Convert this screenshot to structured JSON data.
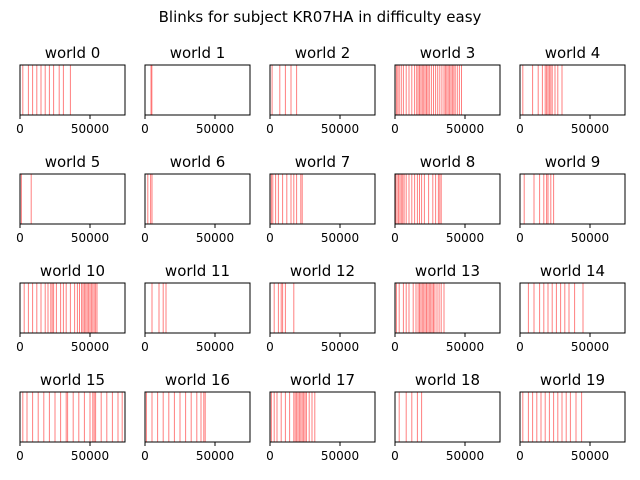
{
  "suptitle": "Blinks for subject KR07HA in difficulty easy",
  "chart_data": {
    "type": "event-lines",
    "title": "Blinks for subject KR07HA in difficulty easy",
    "grid": false,
    "xlim": [
      0,
      75000
    ],
    "xticks": [
      0,
      50000
    ],
    "xtick_labels": [
      "0",
      "50000"
    ],
    "yticks": [],
    "color": "#ff0000",
    "panels": [
      {
        "title": "world 0",
        "events": [
          2000,
          6000,
          9000,
          12000,
          15000,
          18000,
          21000,
          24000,
          28000,
          31000,
          36000
        ]
      },
      {
        "title": "world 1",
        "events": [
          4300,
          4900
        ]
      },
      {
        "title": "world 2",
        "events": [
          1500,
          7000,
          11000,
          15000,
          19000
        ]
      },
      {
        "title": "world 3",
        "events": [
          1000,
          2000,
          3000,
          4500,
          6000,
          8000,
          10000,
          12000,
          14000,
          15500,
          16500,
          17500,
          18500,
          19500,
          20500,
          21500,
          22500,
          23500,
          24500,
          26000,
          27500,
          29000,
          30500,
          32000,
          33500,
          35000,
          36000,
          37000,
          38000,
          39000,
          40000,
          41000,
          42000,
          43000,
          44500,
          46000,
          47500
        ]
      },
      {
        "title": "world 4",
        "events": [
          2000,
          9000,
          13000,
          16000,
          18000,
          19000,
          20000,
          21000,
          22000,
          23000,
          25000,
          27000,
          30000
        ]
      },
      {
        "title": "world 5",
        "events": [
          1000,
          8000
        ]
      },
      {
        "title": "world 6",
        "events": [
          2000,
          4000,
          5000
        ]
      },
      {
        "title": "world 7",
        "events": [
          1000,
          2000,
          4000,
          6000,
          9000,
          12000,
          15000,
          17000,
          19000,
          22000,
          23000
        ]
      },
      {
        "title": "world 8",
        "events": [
          500,
          1500,
          2500,
          3500,
          4500,
          5500,
          6500,
          8000,
          10000,
          12000,
          14000,
          16000,
          17500,
          19000,
          21000,
          24000,
          27000,
          29000,
          31000,
          32000,
          33000
        ]
      },
      {
        "title": "world 9",
        "events": [
          3000,
          10000,
          14000,
          17000,
          19000,
          20000,
          22000,
          24000
        ]
      },
      {
        "title": "world 10",
        "events": [
          3000,
          6000,
          9000,
          12000,
          15000,
          18000,
          20000,
          22000,
          23000,
          24000,
          26000,
          29000,
          31000,
          33000,
          36000,
          39000,
          41000,
          42500,
          44000,
          45000,
          46000,
          47000,
          48000,
          49000,
          50000,
          51000,
          52000,
          53000,
          54000,
          55000
        ]
      },
      {
        "title": "world 11",
        "events": [
          5000,
          10000,
          13000,
          15000
        ]
      },
      {
        "title": "world 12",
        "events": [
          3000,
          6000,
          8000,
          9000,
          11000,
          17000
        ]
      },
      {
        "title": "world 13",
        "events": [
          1000,
          3000,
          6000,
          8000,
          10000,
          13000,
          15000,
          16500,
          17500,
          18500,
          19500,
          20500,
          21500,
          22500,
          23500,
          24500,
          25500,
          26500,
          27500,
          28500,
          30000,
          31500,
          33000,
          35000
        ]
      },
      {
        "title": "world 14",
        "events": [
          6000,
          10000,
          14000,
          17000,
          20000,
          23000,
          26000,
          29000,
          32000,
          35000,
          39000,
          45000
        ]
      },
      {
        "title": "world 15",
        "events": [
          2000,
          5000,
          9000,
          13000,
          17000,
          21000,
          25000,
          29000,
          33000,
          34000,
          38000,
          42000,
          46000,
          50000,
          52000,
          53000,
          54000,
          58000,
          62000,
          66000,
          70000,
          73000
        ]
      },
      {
        "title": "world 16",
        "events": [
          1000,
          5000,
          9000,
          13000,
          17000,
          21000,
          25000,
          29000,
          33000,
          37000,
          40000,
          42000,
          43000
        ]
      },
      {
        "title": "world 17",
        "events": [
          1000,
          3000,
          5000,
          8000,
          11000,
          14000,
          17000,
          18000,
          19000,
          20000,
          21000,
          22000,
          23000,
          24000,
          25000,
          26000,
          28000,
          30000,
          32000
        ]
      },
      {
        "title": "world 18",
        "events": [
          3000,
          8000,
          12000,
          16000,
          19000
        ]
      },
      {
        "title": "world 19",
        "events": [
          2000,
          6000,
          9000,
          12000,
          15000,
          18000,
          21000,
          24000,
          27000,
          30000,
          33000,
          36000,
          40000,
          44000
        ]
      }
    ]
  }
}
